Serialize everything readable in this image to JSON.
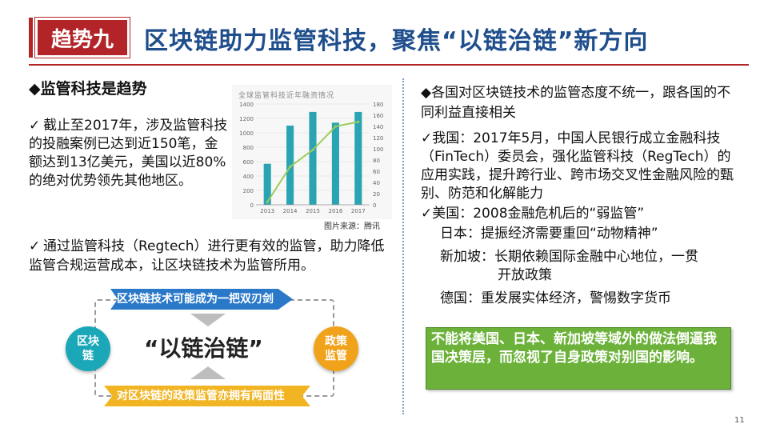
{
  "header": {
    "tag": "趋势九",
    "title": "区块链助力监管科技，聚焦“以链治链”新方向"
  },
  "left": {
    "heading": "◆监管科技是趋势",
    "bullet1_check": "✓",
    "bullet1": "截止至2017年，涉及监管科技的投融案例已达到近150笔，金额达到13亿美元，美国以近80%的绝对优势领先其他地区。",
    "bullet2_check": "✓",
    "bullet2": "通过监管科技（Regtech）进行更有效的监管，助力降低监管合规运营成本，让区块链技术为监管所用。",
    "image_source": "图片来源：腾讯"
  },
  "chart_data": {
    "type": "bar",
    "title": "全球监管科技近年融资情况",
    "categories": [
      "2013",
      "2014",
      "2015",
      "2016",
      "2017"
    ],
    "series": [
      {
        "kind": "bar",
        "values": [
          570,
          1100,
          1290,
          1140,
          1290
        ]
      },
      {
        "kind": "line",
        "values": [
          5,
          68,
          98,
          140,
          148
        ]
      }
    ],
    "left_axis": {
      "ylim": [
        0,
        1400
      ],
      "ticks": [
        0,
        200,
        400,
        600,
        800,
        1000,
        1200,
        1400
      ]
    },
    "right_axis": {
      "ylim": [
        0,
        180
      ],
      "ticks": [
        0,
        20,
        40,
        60,
        80,
        100,
        120,
        140,
        160,
        180
      ]
    },
    "colors": {
      "bar": "#2aa3b2",
      "line": "#9ccc5a"
    }
  },
  "diagram": {
    "top_label": "区块链技术可能成为一把双刃剑",
    "bottom_label": "对区块链的政策监管亦拥有两面性",
    "center": "“以链治链”",
    "left_circle": [
      "区块",
      "链"
    ],
    "right_circle": [
      "政策",
      "监管"
    ]
  },
  "right": {
    "heading": "◆各国对区块链技术的监管态度不统一，跟各国的不同利益直接相关",
    "china": "✓我国：2017年5月，中国人民银行成立金融科技（FinTech）委员会，强化监管科技（RegTech）的应用实践，提升跨行业、跨市场交叉性金融风险的甄别、防范和化解能力",
    "usa": "✓美国：2008金融危机后的“弱监管”",
    "japan": "日本：提振经济需要重回“动物精神”",
    "singapore_1": "新加坡：长期依赖国际金融中心地位，一贯",
    "singapore_2": "开放政策",
    "germany": "德国：重发展实体经济，警惕数字货币",
    "callout": "不能将美国、日本、新加坡等域外的做法倒逼我国决策层，而忽视了自身政策对别国的影响。"
  },
  "page_number": "11"
}
